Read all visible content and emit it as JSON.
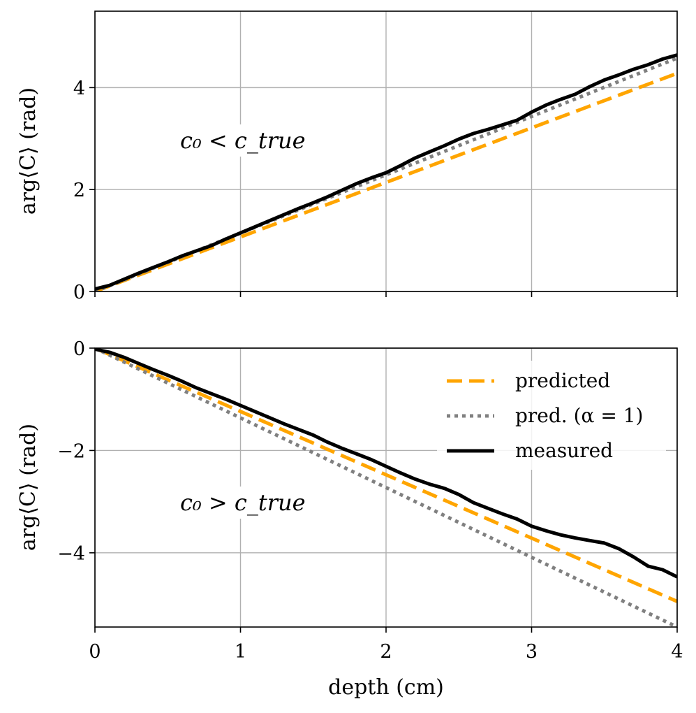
{
  "colors": {
    "predicted": "#FFA500",
    "pred_alpha1": "#808080",
    "measured": "#000000",
    "grid": "#b0b0b0"
  },
  "xlabel": "depth (cm)",
  "legend": {
    "location": "upper-right of bottom panel",
    "entries": [
      "predicted",
      "pred. (α = 1)",
      "measured"
    ]
  },
  "chart_data": [
    {
      "type": "line",
      "panel": "top",
      "annotation": "c₀ < c_true",
      "xlabel": "",
      "ylabel": "arg⟨C⟩ (rad)",
      "xlim": [
        0,
        4
      ],
      "ylim": [
        0,
        5.5
      ],
      "xticks": [
        "0",
        "1",
        "2",
        "3",
        "4"
      ],
      "yticks": [
        0,
        2,
        4
      ],
      "ytick_labels": [
        "0",
        "2",
        "4"
      ],
      "grid": true,
      "series": [
        {
          "name": "predicted",
          "style": "dashed",
          "x": [
            0,
            4
          ],
          "y": [
            0,
            4.28
          ]
        },
        {
          "name": "pred. (α = 1)",
          "style": "dotted",
          "x": [
            0,
            4
          ],
          "y": [
            0,
            4.58
          ]
        },
        {
          "name": "measured",
          "style": "solid",
          "x": [
            0,
            0.1,
            0.2,
            0.3,
            0.4,
            0.5,
            0.6,
            0.7,
            0.8,
            0.9,
            1.0,
            1.1,
            1.2,
            1.3,
            1.4,
            1.5,
            1.6,
            1.7,
            1.8,
            1.9,
            2.0,
            2.1,
            2.2,
            2.3,
            2.4,
            2.5,
            2.6,
            2.7,
            2.8,
            2.9,
            3.0,
            3.1,
            3.2,
            3.3,
            3.4,
            3.5,
            3.6,
            3.7,
            3.8,
            3.9,
            4.0
          ],
          "y": [
            0.05,
            0.12,
            0.24,
            0.36,
            0.47,
            0.58,
            0.7,
            0.8,
            0.9,
            1.03,
            1.15,
            1.27,
            1.39,
            1.51,
            1.63,
            1.74,
            1.86,
            1.99,
            2.12,
            2.23,
            2.33,
            2.47,
            2.62,
            2.74,
            2.86,
            2.99,
            3.1,
            3.18,
            3.27,
            3.36,
            3.52,
            3.66,
            3.77,
            3.87,
            4.02,
            4.15,
            4.25,
            4.36,
            4.45,
            4.56,
            4.64
          ]
        }
      ]
    },
    {
      "type": "line",
      "panel": "bottom",
      "annotation": "c₀ > c_true",
      "xlabel": "depth (cm)",
      "ylabel": "arg⟨C⟩ (rad)",
      "xlim": [
        0,
        4
      ],
      "ylim": [
        -5.45,
        0
      ],
      "xticks": [
        "0",
        "1",
        "2",
        "3",
        "4"
      ],
      "yticks": [
        0,
        -2,
        -4
      ],
      "ytick_labels": [
        "0",
        "−2",
        "−4"
      ],
      "grid": true,
      "series": [
        {
          "name": "predicted",
          "style": "dashed",
          "x": [
            0,
            4
          ],
          "y": [
            0,
            -4.95
          ]
        },
        {
          "name": "pred. (α = 1)",
          "style": "dotted",
          "x": [
            0,
            4
          ],
          "y": [
            0,
            -5.45
          ]
        },
        {
          "name": "measured",
          "style": "solid",
          "x": [
            0,
            0.1,
            0.2,
            0.3,
            0.4,
            0.5,
            0.6,
            0.7,
            0.8,
            0.9,
            1.0,
            1.1,
            1.2,
            1.3,
            1.4,
            1.5,
            1.6,
            1.7,
            1.8,
            1.9,
            2.0,
            2.1,
            2.2,
            2.3,
            2.4,
            2.5,
            2.6,
            2.7,
            2.8,
            2.9,
            3.0,
            3.1,
            3.2,
            3.3,
            3.4,
            3.5,
            3.6,
            3.7,
            3.8,
            3.9,
            4.0
          ],
          "y": [
            -0.02,
            -0.08,
            -0.18,
            -0.3,
            -0.42,
            -0.53,
            -0.65,
            -0.78,
            -0.89,
            -1.0,
            -1.12,
            -1.24,
            -1.36,
            -1.48,
            -1.59,
            -1.7,
            -1.84,
            -1.96,
            -2.07,
            -2.18,
            -2.31,
            -2.44,
            -2.56,
            -2.66,
            -2.74,
            -2.86,
            -3.02,
            -3.13,
            -3.24,
            -3.34,
            -3.48,
            -3.57,
            -3.65,
            -3.71,
            -3.76,
            -3.81,
            -3.92,
            -4.08,
            -4.26,
            -4.33,
            -4.47
          ]
        }
      ]
    }
  ]
}
